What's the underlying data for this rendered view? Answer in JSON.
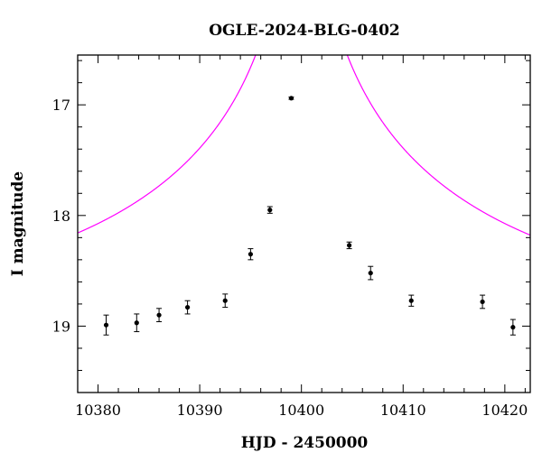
{
  "chart_data": {
    "type": "scatter",
    "title": "OGLE-2024-BLG-0402",
    "xlabel": "HJD - 2450000",
    "ylabel": "I magnitude",
    "xlim": [
      10378,
      10422.5
    ],
    "ylim": [
      19.6,
      16.55
    ],
    "y_inverted": true,
    "x_ticks": [
      10380,
      10390,
      10400,
      10410,
      10420
    ],
    "x_tick_labels": [
      "10380",
      "10390",
      "10400",
      "10410",
      "10420"
    ],
    "y_ticks": [
      17,
      18,
      19
    ],
    "y_tick_labels": [
      "17",
      "18",
      "19"
    ],
    "x_minor_step": 2,
    "y_minor_step": 0.2,
    "grid": false,
    "series": [
      {
        "type": "scatter",
        "color": "#000000",
        "points": [
          {
            "x": 10380.8,
            "y": 18.99,
            "err": 0.09
          },
          {
            "x": 10383.8,
            "y": 18.97,
            "err": 0.08
          },
          {
            "x": 10386.0,
            "y": 18.9,
            "err": 0.06
          },
          {
            "x": 10388.8,
            "y": 18.83,
            "err": 0.06
          },
          {
            "x": 10392.5,
            "y": 18.77,
            "err": 0.06
          },
          {
            "x": 10395.0,
            "y": 18.35,
            "err": 0.05
          },
          {
            "x": 10396.9,
            "y": 17.95,
            "err": 0.03
          },
          {
            "x": 10399.0,
            "y": 16.94,
            "err": 0.01
          },
          {
            "x": 10404.7,
            "y": 18.27,
            "err": 0.03
          },
          {
            "x": 10406.8,
            "y": 18.52,
            "err": 0.06
          },
          {
            "x": 10410.8,
            "y": 18.77,
            "err": 0.05
          },
          {
            "x": 10417.8,
            "y": 18.78,
            "err": 0.06
          },
          {
            "x": 10420.8,
            "y": 19.01,
            "err": 0.07
          }
        ]
      },
      {
        "type": "line",
        "color": "#ff00ff",
        "model": {
          "t0": 10400.0,
          "u0": 0.012,
          "tE": 40.0,
          "I_base": 18.92
        }
      }
    ]
  }
}
